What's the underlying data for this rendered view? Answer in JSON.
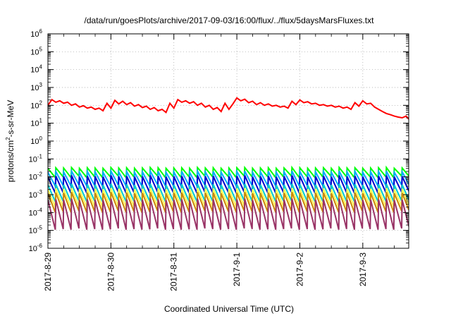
{
  "chart_data": {
    "type": "line",
    "title": "/data/run/goesPlots/archive/2017-09-03/16:00/flux/../flux/5daysMarsFluxes.txt",
    "xlabel": "Coordinated Universal Time (UTC)",
    "ylabel_main": "protons/cm",
    "ylabel_sup": "2",
    "ylabel_tail": "-s-sr-MeV",
    "yscale": "log",
    "ylim": [
      1e-06,
      1000000.0
    ],
    "x_start": "2017-08-29 00:00",
    "x_end": "2017-09-03 17:30",
    "grid": true,
    "legend": "none",
    "yticks": [
      {
        "value": 1000000.0,
        "base": "10",
        "exp": "6"
      },
      {
        "value": 100000.0,
        "base": "10",
        "exp": "5"
      },
      {
        "value": 10000.0,
        "base": "10",
        "exp": "4"
      },
      {
        "value": 1000.0,
        "base": "10",
        "exp": "3"
      },
      {
        "value": 100.0,
        "base": "10",
        "exp": "2"
      },
      {
        "value": 10.0,
        "base": "10",
        "exp": "1"
      },
      {
        "value": 1.0,
        "base": "10",
        "exp": "0"
      },
      {
        "value": 0.1,
        "base": "10",
        "exp": "-1"
      },
      {
        "value": 0.01,
        "base": "10",
        "exp": "-2"
      },
      {
        "value": 0.001,
        "base": "10",
        "exp": "-3"
      },
      {
        "value": 0.0001,
        "base": "10",
        "exp": "-4"
      },
      {
        "value": 1e-05,
        "base": "10",
        "exp": "-5"
      },
      {
        "value": 1e-06,
        "base": "10",
        "exp": "-6"
      }
    ],
    "xticks": [
      {
        "label": "2017-8-29",
        "value": "2017-08-29 00:00"
      },
      {
        "label": "2017-8-30",
        "value": "2017-08-30 00:00"
      },
      {
        "label": "2017-8-31",
        "value": "2017-08-31 00:00"
      },
      {
        "label": "2017-9-1",
        "value": "2017-09-01 00:00"
      },
      {
        "label": "2017-9-2",
        "value": "2017-09-02 00:00"
      },
      {
        "label": "2017-9-3",
        "value": "2017-09-03 00:00"
      }
    ],
    "series": [
      {
        "color": "#ff0000",
        "x": [
          "2017-08-29 00:00",
          "2017-08-29 01:30",
          "2017-08-29 03:00",
          "2017-08-29 04:30",
          "2017-08-29 06:00",
          "2017-08-29 07:30",
          "2017-08-29 09:00",
          "2017-08-29 10:30",
          "2017-08-29 12:00",
          "2017-08-29 13:30",
          "2017-08-29 15:00",
          "2017-08-29 16:30",
          "2017-08-29 18:00",
          "2017-08-29 19:30",
          "2017-08-29 21:00",
          "2017-08-29 22:30",
          "2017-08-30 00:00",
          "2017-08-30 01:30",
          "2017-08-30 03:00",
          "2017-08-30 04:30",
          "2017-08-30 06:00",
          "2017-08-30 07:30",
          "2017-08-30 09:00",
          "2017-08-30 10:30",
          "2017-08-30 12:00",
          "2017-08-30 13:30",
          "2017-08-30 15:00",
          "2017-08-30 16:30",
          "2017-08-30 18:00",
          "2017-08-30 19:30",
          "2017-08-30 21:00",
          "2017-08-30 22:30",
          "2017-08-31 00:00",
          "2017-08-31 01:30",
          "2017-08-31 03:00",
          "2017-08-31 04:30",
          "2017-08-31 06:00",
          "2017-08-31 07:30",
          "2017-08-31 09:00",
          "2017-08-31 10:30",
          "2017-08-31 12:00",
          "2017-08-31 13:30",
          "2017-08-31 15:00",
          "2017-08-31 16:30",
          "2017-08-31 18:00",
          "2017-08-31 19:30",
          "2017-08-31 21:00",
          "2017-08-31 22:30",
          "2017-09-01 00:00",
          "2017-09-01 01:30",
          "2017-09-01 03:00",
          "2017-09-01 04:30",
          "2017-09-01 06:00",
          "2017-09-01 07:30",
          "2017-09-01 09:00",
          "2017-09-01 10:30",
          "2017-09-01 12:00",
          "2017-09-01 13:30",
          "2017-09-01 15:00",
          "2017-09-01 16:30",
          "2017-09-01 18:00",
          "2017-09-01 19:30",
          "2017-09-01 21:00",
          "2017-09-01 22:30",
          "2017-09-02 00:00",
          "2017-09-02 01:30",
          "2017-09-02 03:00",
          "2017-09-02 04:30",
          "2017-09-02 06:00",
          "2017-09-02 07:30",
          "2017-09-02 09:00",
          "2017-09-02 10:30",
          "2017-09-02 12:00",
          "2017-09-02 13:30",
          "2017-09-02 15:00",
          "2017-09-02 16:30",
          "2017-09-02 18:00",
          "2017-09-02 19:30",
          "2017-09-02 21:00",
          "2017-09-02 22:30",
          "2017-09-03 00:00",
          "2017-09-03 01:30",
          "2017-09-03 03:00",
          "2017-09-03 04:30",
          "2017-09-03 06:00",
          "2017-09-03 07:30",
          "2017-09-03 09:00",
          "2017-09-03 10:30",
          "2017-09-03 12:00",
          "2017-09-03 13:30",
          "2017-09-03 15:00",
          "2017-09-03 16:30",
          "2017-09-03 17:30"
        ],
        "values": [
          100,
          210,
          150,
          180,
          130,
          150,
          100,
          120,
          80,
          95,
          70,
          80,
          60,
          70,
          50,
          130,
          70,
          190,
          120,
          170,
          110,
          140,
          90,
          110,
          75,
          90,
          60,
          75,
          50,
          60,
          40,
          130,
          70,
          210,
          150,
          180,
          130,
          160,
          100,
          130,
          80,
          100,
          60,
          75,
          45,
          130,
          60,
          120,
          260,
          180,
          220,
          140,
          170,
          110,
          140,
          100,
          120,
          90,
          100,
          80,
          90,
          70,
          170,
          110,
          200,
          140,
          160,
          120,
          130,
          100,
          110,
          90,
          100,
          80,
          90,
          70,
          80,
          60,
          140,
          90,
          180,
          120,
          130,
          80,
          60,
          45,
          35,
          30,
          25,
          22,
          20,
          25,
          17
        ]
      },
      {
        "color": "#00ff00",
        "period_hours": 3,
        "peaks": [
          0.03,
          0.032,
          0.031,
          0.033,
          0.03,
          0.032,
          0.031,
          0.03,
          0.033,
          0.031,
          0.032,
          0.03,
          0.031,
          0.033,
          0.032,
          0.03,
          0.031,
          0.032,
          0.03,
          0.033,
          0.031,
          0.032,
          0.03,
          0.031,
          0.032,
          0.033,
          0.03,
          0.031,
          0.032,
          0.03,
          0.031,
          0.033,
          0.032,
          0.03,
          0.031,
          0.032,
          0.03,
          0.033,
          0.031,
          0.032,
          0.03,
          0.031,
          0.032,
          0.033,
          0.03,
          0.031,
          0.032
        ],
        "troughs": [
          0.009,
          0.01,
          0.009,
          0.011,
          0.009,
          0.01,
          0.009,
          0.01,
          0.011,
          0.009,
          0.01,
          0.009,
          0.01,
          0.011,
          0.009,
          0.01,
          0.009,
          0.01,
          0.009,
          0.011,
          0.01,
          0.009,
          0.01,
          0.009,
          0.011,
          0.01,
          0.009,
          0.01,
          0.009,
          0.01,
          0.011,
          0.009,
          0.01,
          0.009,
          0.01,
          0.011,
          0.009,
          0.01,
          0.009,
          0.011,
          0.01,
          0.009,
          0.01,
          0.009,
          0.011,
          0.01,
          0.009
        ]
      },
      {
        "color": "#00aaff",
        "period_hours": 3,
        "peaks": [
          0.018,
          0.02,
          0.019,
          0.021,
          0.018,
          0.02,
          0.019,
          0.018,
          0.021,
          0.019,
          0.02,
          0.018,
          0.019,
          0.021,
          0.02,
          0.018,
          0.019,
          0.02,
          0.018,
          0.021,
          0.019,
          0.02,
          0.018,
          0.019,
          0.02,
          0.021,
          0.018,
          0.019,
          0.02,
          0.018,
          0.019,
          0.021,
          0.02,
          0.018,
          0.019,
          0.02,
          0.018,
          0.021,
          0.019,
          0.02,
          0.018,
          0.019,
          0.02,
          0.021,
          0.018,
          0.019,
          0.02
        ],
        "troughs": [
          0.003,
          0.0032,
          0.003,
          0.0035,
          0.003,
          0.0032,
          0.003,
          0.0031,
          0.0034,
          0.003,
          0.0032,
          0.003,
          0.0031,
          0.0035,
          0.003,
          0.0032,
          0.003,
          0.0031,
          0.003,
          0.0034,
          0.0032,
          0.003,
          0.0032,
          0.003,
          0.0035,
          0.0032,
          0.003,
          0.0031,
          0.003,
          0.0032,
          0.0034,
          0.003,
          0.0032,
          0.003,
          0.0031,
          0.0035,
          0.003,
          0.0032,
          0.003,
          0.0034,
          0.0032,
          0.003,
          0.0032,
          0.003,
          0.0035,
          0.0032,
          0.003
        ]
      },
      {
        "color": "#0000cc",
        "period_hours": 3,
        "peaks": [
          0.01,
          0.011,
          0.0105,
          0.012,
          0.01,
          0.011,
          0.0105,
          0.01,
          0.012,
          0.0105,
          0.011,
          0.01,
          0.0105,
          0.012,
          0.011,
          0.01,
          0.0105,
          0.011,
          0.01,
          0.012,
          0.0105,
          0.011,
          0.01,
          0.0105,
          0.011,
          0.012,
          0.01,
          0.0105,
          0.011,
          0.01,
          0.0105,
          0.012,
          0.011,
          0.01,
          0.0105,
          0.011,
          0.01,
          0.012,
          0.0105,
          0.011,
          0.01,
          0.0105,
          0.011,
          0.012,
          0.01,
          0.0105,
          0.011
        ],
        "troughs": [
          0.0012,
          0.0013,
          0.0012,
          0.0014,
          0.0012,
          0.0013,
          0.0012,
          0.00125,
          0.0014,
          0.0012,
          0.0013,
          0.0012,
          0.00125,
          0.0014,
          0.0012,
          0.0013,
          0.0012,
          0.00125,
          0.0012,
          0.0014,
          0.0013,
          0.0012,
          0.0013,
          0.0012,
          0.0014,
          0.0013,
          0.0012,
          0.00125,
          0.0012,
          0.0013,
          0.0014,
          0.0012,
          0.0013,
          0.0012,
          0.00125,
          0.0014,
          0.0012,
          0.0013,
          0.0012,
          0.0014,
          0.0013,
          0.0012,
          0.0013,
          0.0012,
          0.0014,
          0.0013,
          0.0012
        ]
      },
      {
        "color": "#00cccc",
        "period_hours": 3,
        "peaks": [
          0.0035,
          0.0038,
          0.0036,
          0.004,
          0.0035,
          0.0038,
          0.0036,
          0.0035,
          0.004,
          0.0036,
          0.0038,
          0.0035,
          0.0036,
          0.004,
          0.0038,
          0.0035,
          0.0036,
          0.0038,
          0.0035,
          0.004,
          0.0036,
          0.0038,
          0.0035,
          0.0036,
          0.0038,
          0.004,
          0.0035,
          0.0036,
          0.0038,
          0.0035,
          0.0036,
          0.004,
          0.0038,
          0.0035,
          0.0036,
          0.0038,
          0.0035,
          0.004,
          0.0036,
          0.0038,
          0.0035,
          0.0036,
          0.0038,
          0.004,
          0.0035,
          0.0036,
          0.0038
        ],
        "troughs": [
          0.0004,
          0.00042,
          0.0004,
          0.00045,
          0.0004,
          0.00042,
          0.0004,
          0.00041,
          0.00045,
          0.0004,
          0.00042,
          0.0004,
          0.00041,
          0.00045,
          0.0004,
          0.00042,
          0.0004,
          0.00041,
          0.0004,
          0.00045,
          0.00042,
          0.0004,
          0.00042,
          0.0004,
          0.00045,
          0.00042,
          0.0004,
          0.00041,
          0.0004,
          0.00042,
          0.00045,
          0.0004,
          0.00042,
          0.0004,
          0.00041,
          0.00045,
          0.0004,
          0.00042,
          0.0004,
          0.00045,
          0.00042,
          0.0004,
          0.00042,
          0.0004,
          0.00045,
          0.00042,
          0.0004
        ]
      },
      {
        "color": "#ffff55",
        "period_hours": 3,
        "peaks": [
          0.002,
          0.0022,
          0.0021,
          0.0023,
          0.002,
          0.0022,
          0.0021,
          0.002,
          0.0023,
          0.0021,
          0.0022,
          0.002,
          0.0021,
          0.0023,
          0.0022,
          0.002,
          0.0021,
          0.0022,
          0.002,
          0.0023,
          0.0021,
          0.0022,
          0.002,
          0.0021,
          0.0022,
          0.0023,
          0.002,
          0.0021,
          0.0022,
          0.002,
          0.0021,
          0.0023,
          0.0022,
          0.002,
          0.0021,
          0.0022,
          0.002,
          0.0023,
          0.0021,
          0.0022,
          0.002,
          0.0021,
          0.0022,
          0.0023,
          0.002,
          0.0021,
          0.0022
        ],
        "troughs": [
          0.0002,
          0.00021,
          0.0002,
          0.00023,
          0.0002,
          0.00021,
          0.0002,
          0.000205,
          0.00023,
          0.0002,
          0.00021,
          0.0002,
          0.000205,
          0.00023,
          0.0002,
          0.00021,
          0.0002,
          0.000205,
          0.0002,
          0.00023,
          0.00021,
          0.0002,
          0.00021,
          0.0002,
          0.00023,
          0.00021,
          0.0002,
          0.000205,
          0.0002,
          0.00021,
          0.00023,
          0.0002,
          0.00021,
          0.0002,
          0.000205,
          0.00023,
          0.0002,
          0.00021,
          0.0002,
          0.00023,
          0.00021,
          0.0002,
          0.00021,
          0.0002,
          0.00023,
          0.00021,
          0.0002
        ]
      },
      {
        "color": "#cc8800",
        "period_hours": 3,
        "peaks": [
          0.0012,
          0.0013,
          0.00125,
          0.0014,
          0.0012,
          0.0013,
          0.00125,
          0.0012,
          0.0014,
          0.00125,
          0.0013,
          0.0012,
          0.00125,
          0.0014,
          0.0013,
          0.0012,
          0.00125,
          0.0013,
          0.0012,
          0.0014,
          0.00125,
          0.0013,
          0.0012,
          0.00125,
          0.0013,
          0.0014,
          0.0012,
          0.00125,
          0.0013,
          0.0012,
          0.00125,
          0.0014,
          0.0013,
          0.0012,
          0.00125,
          0.0013,
          0.0012,
          0.0014,
          0.00125,
          0.0013,
          0.0012,
          0.00125,
          0.0013,
          0.0014,
          0.0012,
          0.00125,
          0.0013
        ],
        "troughs": [
          0.0001,
          0.00011,
          0.0001,
          0.00012,
          0.0001,
          0.00011,
          0.0001,
          0.000105,
          0.00012,
          0.0001,
          0.00011,
          0.0001,
          0.000105,
          0.00012,
          0.0001,
          0.00011,
          0.0001,
          0.000105,
          0.0001,
          0.00012,
          0.00011,
          0.0001,
          0.00011,
          0.0001,
          0.00012,
          0.00011,
          0.0001,
          0.000105,
          0.0001,
          0.00011,
          0.00012,
          0.0001,
          0.00011,
          0.0001,
          0.000105,
          0.00012,
          0.0001,
          0.00011,
          0.0001,
          0.00012,
          0.00011,
          0.0001,
          0.00011,
          0.0001,
          0.00012,
          0.00011,
          0.0001
        ]
      },
      {
        "color": "#993366",
        "period_hours": 3,
        "peaks": [
          0.0005,
          0.00055,
          0.00052,
          0.0006,
          0.0005,
          0.00055,
          0.00052,
          0.0005,
          0.0006,
          0.00052,
          0.00055,
          0.0005,
          0.00052,
          0.0006,
          0.00055,
          0.0005,
          0.00052,
          0.00055,
          0.0005,
          0.0006,
          0.00052,
          0.00055,
          0.0005,
          0.00052,
          0.00055,
          0.0006,
          0.0005,
          0.00052,
          0.00055,
          0.0005,
          0.00052,
          0.0006,
          0.00055,
          0.0005,
          0.00052,
          0.00055,
          0.0005,
          0.0006,
          0.00052,
          0.00055,
          0.0005,
          0.00052,
          0.00055,
          0.0006,
          0.0005,
          0.00052,
          0.00055
        ],
        "troughs": [
          1.1e-05,
          1.2e-05,
          1.1e-05,
          1.3e-05,
          1.1e-05,
          1.2e-05,
          1.1e-05,
          1.15e-05,
          1.3e-05,
          1.1e-05,
          1.2e-05,
          1.1e-05,
          1.15e-05,
          1.3e-05,
          1.1e-05,
          1.2e-05,
          1.1e-05,
          1.15e-05,
          1.1e-05,
          1.3e-05,
          1.2e-05,
          1.1e-05,
          1.2e-05,
          1.1e-05,
          1.3e-05,
          1.2e-05,
          1.1e-05,
          1.15e-05,
          1.1e-05,
          1.2e-05,
          1.3e-05,
          1.1e-05,
          1.2e-05,
          1.1e-05,
          1.15e-05,
          1.3e-05,
          1.1e-05,
          1.2e-05,
          1.1e-05,
          1.3e-05,
          1.2e-05,
          1.1e-05,
          1.2e-05,
          1.1e-05,
          1.3e-05,
          1.2e-05,
          1.1e-05
        ]
      }
    ]
  }
}
